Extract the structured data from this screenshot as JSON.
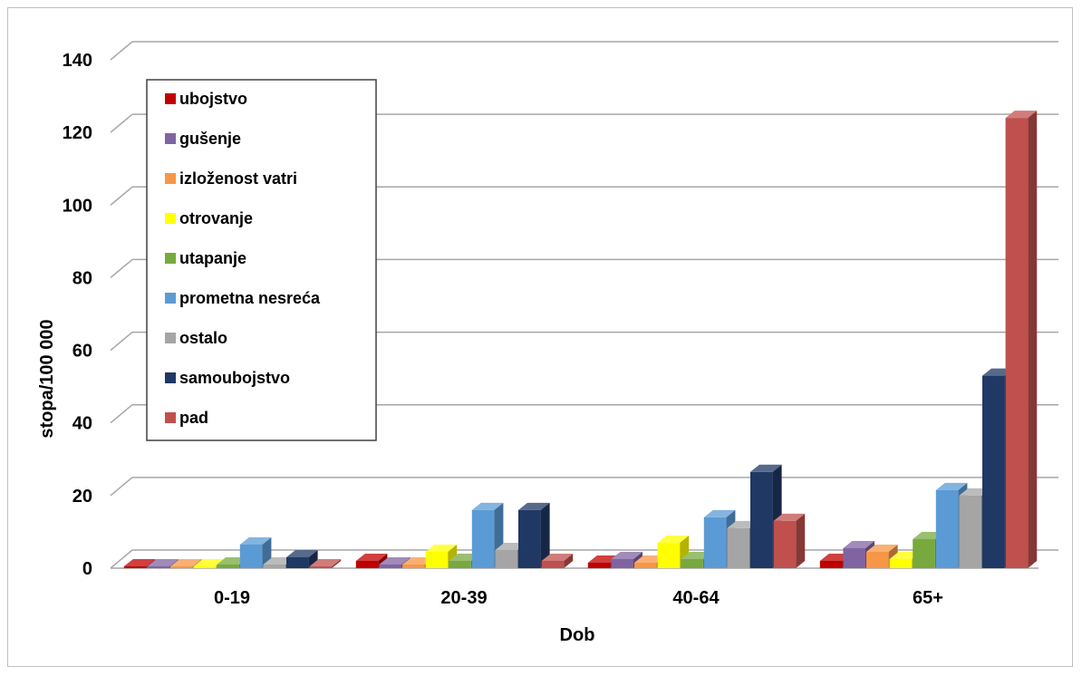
{
  "chart_data": {
    "type": "bar",
    "title": "",
    "xlabel": "Dob",
    "ylabel": "stopa/100 000",
    "ylim": [
      0,
      140
    ],
    "yticks": [
      "0",
      "20",
      "40",
      "60",
      "80",
      "100",
      "120",
      "140"
    ],
    "grid": true,
    "legend_position": "top-left",
    "categories": [
      "0-19",
      "20-39",
      "40-64",
      "65+"
    ],
    "series": [
      {
        "name": "ubojstvo",
        "color": "#c00000",
        "values": [
          0.5,
          2,
          1.5,
          2
        ]
      },
      {
        "name": "gušenje",
        "color": "#8064a2",
        "values": [
          0.5,
          1,
          2.5,
          5.5
        ]
      },
      {
        "name": "izloženost vatri",
        "color": "#f79646",
        "values": [
          0.5,
          1,
          1.5,
          4.5
        ]
      },
      {
        "name": "otrovanje",
        "color": "#ffff00",
        "values": [
          0.5,
          4.5,
          7,
          2.5
        ]
      },
      {
        "name": "utapanje",
        "color": "#77a93f",
        "values": [
          1,
          2,
          2.5,
          8
        ]
      },
      {
        "name": "prometna nesreća",
        "color": "#5b9bd5",
        "values": [
          6.5,
          16,
          14,
          21.5
        ]
      },
      {
        "name": "ostalo",
        "color": "#a5a5a5",
        "values": [
          1,
          5,
          11,
          20
        ]
      },
      {
        "name": "samoubojstvo",
        "color": "#1f3864",
        "values": [
          3,
          16,
          26.5,
          53
        ]
      },
      {
        "name": "pad",
        "color": "#c0504d",
        "values": [
          0.5,
          2,
          13,
          124
        ]
      }
    ]
  }
}
